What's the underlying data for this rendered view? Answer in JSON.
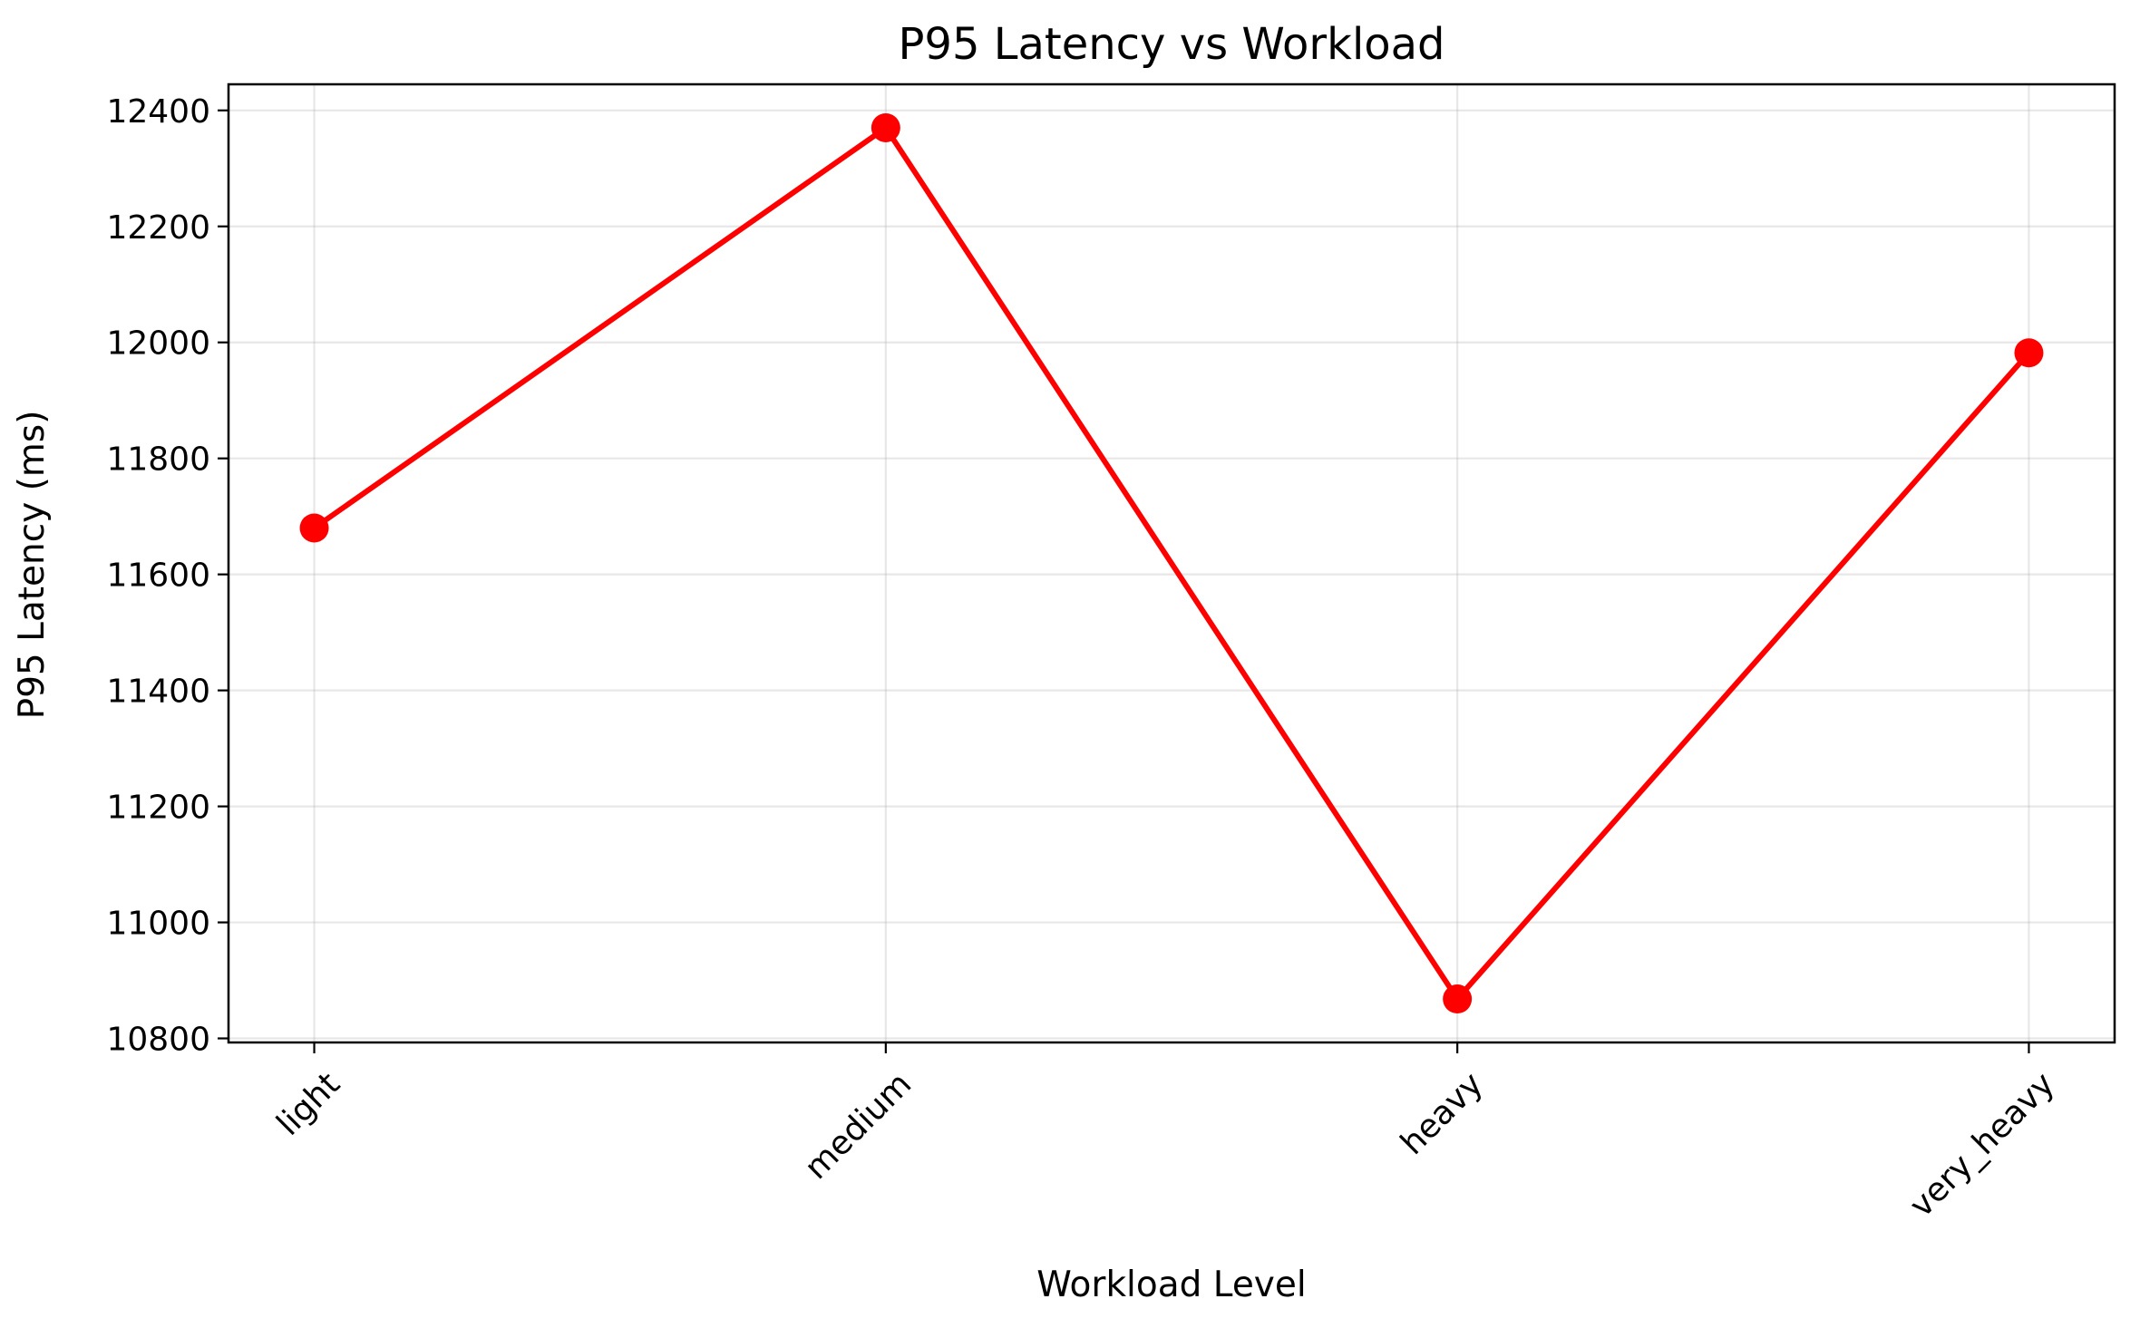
{
  "chart_data": {
    "type": "line",
    "title": "P95 Latency vs Workload",
    "xlabel": "Workload Level",
    "ylabel": "P95 Latency (ms)",
    "categories": [
      "light",
      "medium",
      "heavy",
      "very_heavy"
    ],
    "series": [
      {
        "values": [
          11680,
          12370,
          10868,
          11982
        ],
        "color": "#ff0000",
        "marker": "circle"
      }
    ],
    "yticks": [
      10800,
      11000,
      11200,
      11400,
      11600,
      11800,
      12000,
      12200,
      12400
    ],
    "ylim": [
      10793,
      12445
    ],
    "grid": true,
    "legend": "none",
    "xtick_rotation": 45
  }
}
